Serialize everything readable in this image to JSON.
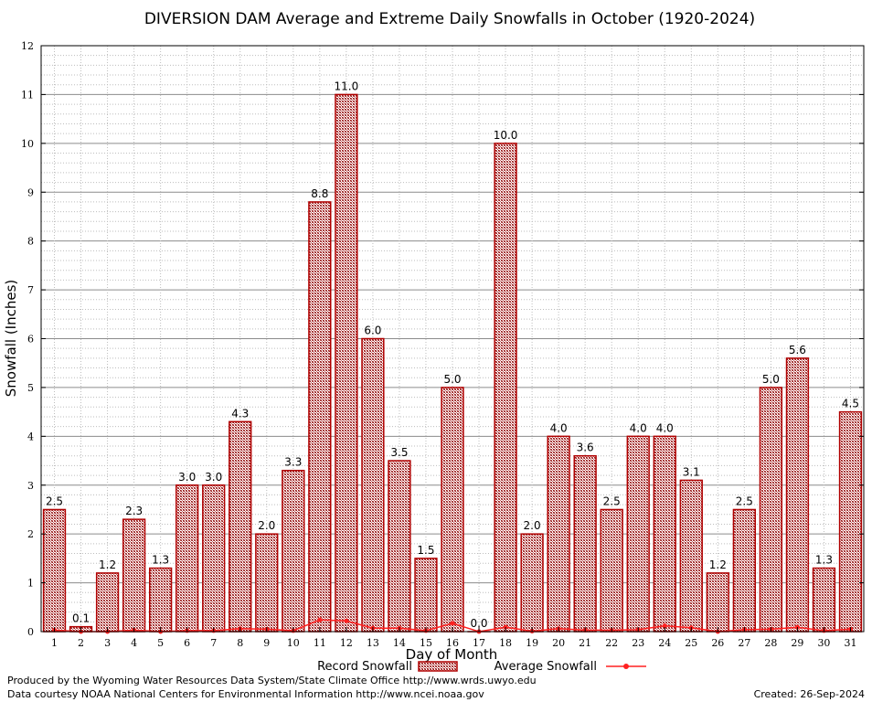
{
  "chart_data": {
    "type": "bar",
    "title": "DIVERSION DAM Average and Extreme Daily Snowfalls in October (1920-2024)",
    "xlabel": "Day of Month",
    "ylabel": "Snowfall (Inches)",
    "ylim": [
      0,
      12
    ],
    "yticks": [
      "0",
      "1",
      "2",
      "3",
      "4",
      "5",
      "6",
      "7",
      "8",
      "9",
      "10",
      "11",
      "12"
    ],
    "categories": [
      "1",
      "2",
      "3",
      "4",
      "5",
      "6",
      "7",
      "8",
      "9",
      "10",
      "11",
      "12",
      "13",
      "14",
      "15",
      "16",
      "17",
      "18",
      "19",
      "20",
      "21",
      "22",
      "23",
      "24",
      "25",
      "26",
      "27",
      "28",
      "29",
      "30",
      "31"
    ],
    "series": [
      {
        "name": "Record Snowfall",
        "color": "#b00000",
        "values": [
          2.5,
          0.1,
          1.2,
          2.3,
          1.3,
          3.0,
          3.0,
          4.3,
          2.0,
          3.3,
          8.8,
          11.0,
          6.0,
          3.5,
          1.5,
          5.0,
          0.0,
          10.0,
          2.0,
          4.0,
          3.6,
          2.5,
          4.0,
          4.0,
          3.1,
          1.2,
          2.5,
          5.0,
          5.6,
          1.3,
          4.5
        ],
        "labels": [
          "2.5",
          "0.1",
          "1.2",
          "2.3",
          "1.3",
          "3.0",
          "3.0",
          "4.3",
          "2.0",
          "3.3",
          "8.8",
          "11.0",
          "6.0",
          "3.5",
          "1.5",
          "5.0",
          "0.0",
          "10.0",
          "2.0",
          "4.0",
          "3.6",
          "2.5",
          "4.0",
          "4.0",
          "3.1",
          "1.2",
          "2.5",
          "5.0",
          "5.6",
          "1.3",
          "4.5"
        ]
      },
      {
        "name": "Average Snowfall",
        "color": "#ff2020",
        "values": [
          0.03,
          0.0,
          0.0,
          0.03,
          0.0,
          0.02,
          0.02,
          0.06,
          0.05,
          0.02,
          0.24,
          0.22,
          0.07,
          0.07,
          0.02,
          0.17,
          0.0,
          0.09,
          0.01,
          0.06,
          0.03,
          0.03,
          0.04,
          0.12,
          0.08,
          0.0,
          0.04,
          0.05,
          0.09,
          0.02,
          0.05
        ]
      }
    ],
    "legend_position": "bottom"
  },
  "footer": {
    "produced": "Produced by the Wyoming Water Resources Data System/State Climate Office http://www.wrds.uwyo.edu",
    "courtesy": "Data courtesy NOAA National Centers for Environmental Information http://www.ncei.noaa.gov",
    "created": "Created:  26-Sep-2024"
  }
}
